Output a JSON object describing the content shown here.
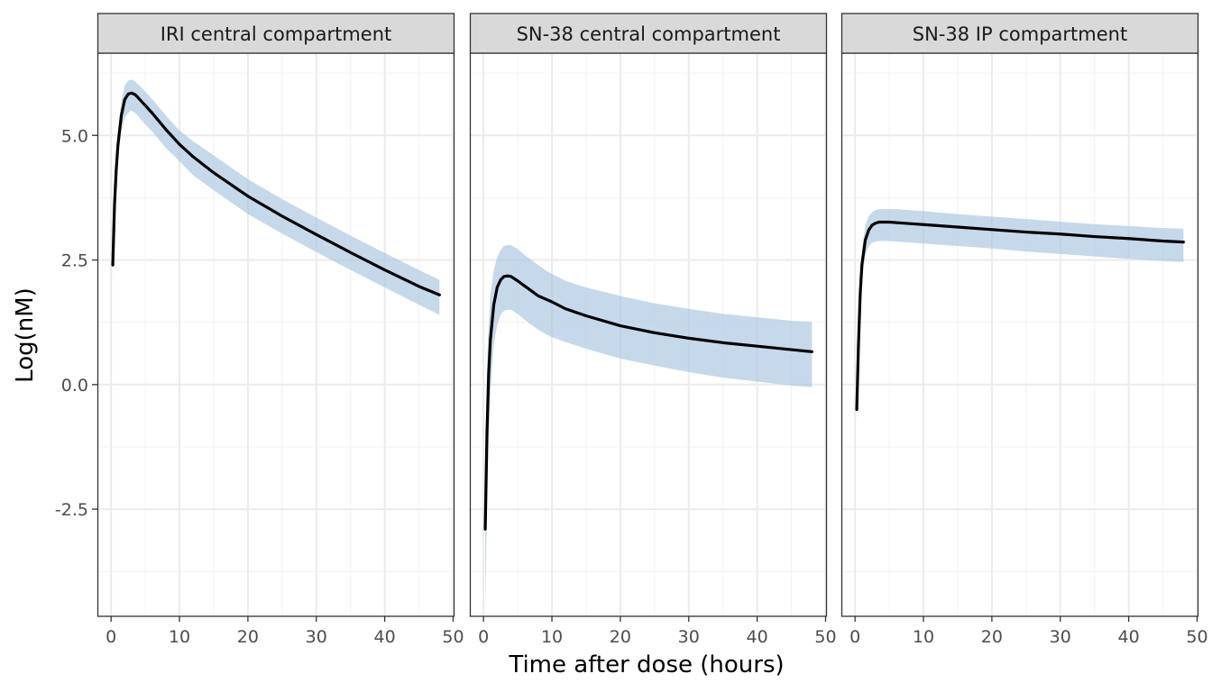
{
  "chart_data": {
    "type": "line",
    "xlabel": "Time after dose (hours)",
    "ylabel": "Log(nM)",
    "xlim": [
      -2,
      50.2
    ],
    "ylim": [
      -4.65,
      6.65
    ],
    "x_ticks": [
      0,
      10,
      20,
      30,
      40,
      50
    ],
    "x_tick_labels": [
      "0",
      "10",
      "20",
      "30",
      "40",
      "50"
    ],
    "y_ticks": [
      5.0,
      2.5,
      0.0,
      -2.5
    ],
    "y_tick_labels": [
      "5.0",
      "2.5",
      "0.0",
      "-2.5"
    ],
    "grid": true,
    "line_color": "#000000",
    "ribbon_color": "#a8c4e0",
    "panels": [
      {
        "title": "IRI central compartment",
        "x": [
          0.25,
          0.5,
          0.75,
          1.0,
          1.5,
          2.0,
          2.5,
          3.0,
          3.5,
          4.0,
          5.0,
          6.0,
          8.0,
          10.0,
          12.0,
          15.0,
          20.0,
          25.0,
          30.0,
          35.0,
          40.0,
          45.0,
          48.0
        ],
        "y": [
          2.4,
          3.6,
          4.3,
          4.8,
          5.4,
          5.72,
          5.83,
          5.85,
          5.82,
          5.75,
          5.6,
          5.45,
          5.12,
          4.82,
          4.57,
          4.25,
          3.78,
          3.38,
          3.01,
          2.65,
          2.3,
          1.97,
          1.8
        ],
        "lower": [
          2.2,
          3.3,
          4.0,
          4.5,
          5.1,
          5.35,
          5.45,
          5.5,
          5.45,
          5.38,
          5.22,
          5.08,
          4.75,
          4.48,
          4.2,
          3.9,
          3.42,
          3.03,
          2.66,
          2.3,
          1.95,
          1.6,
          1.4
        ],
        "upper": [
          2.6,
          3.9,
          4.6,
          5.1,
          5.7,
          6.0,
          6.1,
          6.12,
          6.08,
          6.02,
          5.88,
          5.73,
          5.4,
          5.1,
          4.88,
          4.6,
          4.12,
          3.72,
          3.35,
          2.99,
          2.64,
          2.3,
          2.1
        ]
      },
      {
        "title": "SN-38 central compartment",
        "x": [
          0.25,
          0.5,
          0.75,
          1.0,
          1.5,
          2.0,
          2.5,
          3.0,
          3.5,
          4.0,
          5.0,
          6.0,
          7.0,
          8.0,
          9.0,
          10.0,
          12.0,
          15.0,
          20.0,
          25.0,
          30.0,
          35.0,
          40.0,
          45.0,
          48.0
        ],
        "y": [
          -2.9,
          -1.0,
          0.2,
          0.9,
          1.6,
          1.95,
          2.1,
          2.17,
          2.18,
          2.17,
          2.08,
          1.98,
          1.88,
          1.78,
          1.72,
          1.66,
          1.52,
          1.38,
          1.18,
          1.04,
          0.93,
          0.84,
          0.77,
          0.7,
          0.66
        ],
        "lower": [
          -4.5,
          -2.6,
          -1.1,
          -0.2,
          0.8,
          1.2,
          1.4,
          1.48,
          1.5,
          1.5,
          1.42,
          1.3,
          1.2,
          1.1,
          1.02,
          0.95,
          0.85,
          0.72,
          0.52,
          0.38,
          0.25,
          0.14,
          0.06,
          -0.02,
          -0.05
        ],
        "upper": [
          -1.5,
          0.3,
          1.2,
          1.8,
          2.3,
          2.55,
          2.7,
          2.78,
          2.8,
          2.8,
          2.72,
          2.6,
          2.5,
          2.4,
          2.3,
          2.22,
          2.08,
          1.95,
          1.78,
          1.63,
          1.52,
          1.42,
          1.35,
          1.28,
          1.26
        ]
      },
      {
        "title": "SN-38 IP compartment",
        "x": [
          0.25,
          0.5,
          0.75,
          1.0,
          1.5,
          2.0,
          2.5,
          3.0,
          3.5,
          4.0,
          5.0,
          6.0,
          8.0,
          10.0,
          15.0,
          20.0,
          25.0,
          30.0,
          35.0,
          40.0,
          45.0,
          48.0
        ],
        "y": [
          -0.5,
          0.8,
          1.8,
          2.4,
          2.9,
          3.1,
          3.2,
          3.24,
          3.26,
          3.26,
          3.26,
          3.25,
          3.23,
          3.21,
          3.16,
          3.11,
          3.06,
          3.02,
          2.97,
          2.93,
          2.88,
          2.86
        ],
        "lower": [
          -0.8,
          0.5,
          1.5,
          2.1,
          2.6,
          2.78,
          2.85,
          2.87,
          2.88,
          2.88,
          2.88,
          2.87,
          2.85,
          2.83,
          2.78,
          2.73,
          2.67,
          2.62,
          2.57,
          2.52,
          2.48,
          2.46
        ],
        "upper": [
          -0.2,
          1.1,
          2.1,
          2.7,
          3.2,
          3.38,
          3.46,
          3.5,
          3.52,
          3.52,
          3.52,
          3.52,
          3.5,
          3.48,
          3.42,
          3.37,
          3.32,
          3.27,
          3.22,
          3.18,
          3.14,
          3.13
        ]
      }
    ]
  }
}
